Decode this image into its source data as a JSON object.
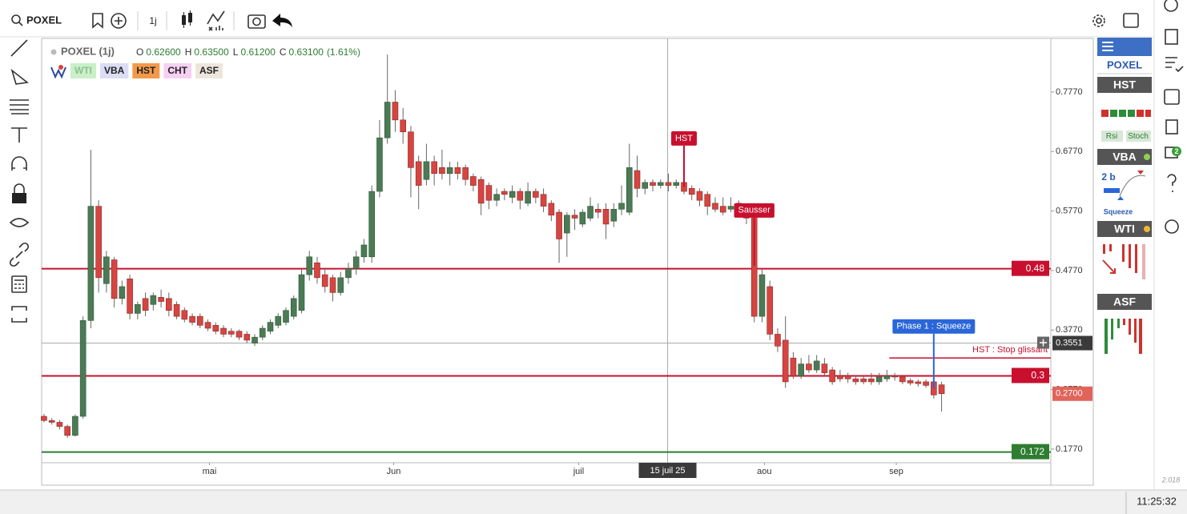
{
  "toolbar": {
    "symbol": "POXEL",
    "interval": "1j"
  },
  "legend": {
    "title": "POXEL (1j)",
    "ohlc": [
      {
        "key": "O",
        "value": "0.62600"
      },
      {
        "key": "H",
        "value": "0.63500"
      },
      {
        "key": "L",
        "value": "0.61200"
      },
      {
        "key": "C",
        "value": "0.63100"
      }
    ],
    "change": "(1.61%)",
    "indicators": [
      {
        "name": "WTI",
        "color": "#c9f0c9",
        "text_color": "#8fbf8f"
      },
      {
        "name": "VBA",
        "color": "#dcdcf5",
        "text_color": "#222"
      },
      {
        "name": "HST",
        "color": "#f39a4a",
        "text_color": "#222"
      },
      {
        "name": "CHT",
        "color": "#f6d0f2",
        "text_color": "#222"
      },
      {
        "name": "ASF",
        "color": "#eee6dc",
        "text_color": "#222"
      }
    ]
  },
  "chart_data": {
    "type": "candlestick",
    "up_color": "#4b7a55",
    "down_color": "#d64541",
    "candles": [
      [
        0.232,
        0.236,
        0.222,
        0.225
      ],
      [
        0.225,
        0.229,
        0.218,
        0.222
      ],
      [
        0.222,
        0.226,
        0.21,
        0.215
      ],
      [
        0.215,
        0.218,
        0.196,
        0.2
      ],
      [
        0.2,
        0.235,
        0.198,
        0.232
      ],
      [
        0.232,
        0.4,
        0.228,
        0.393
      ],
      [
        0.393,
        0.68,
        0.38,
        0.585
      ],
      [
        0.585,
        0.595,
        0.44,
        0.465
      ],
      [
        0.455,
        0.51,
        0.44,
        0.5
      ],
      [
        0.495,
        0.5,
        0.415,
        0.43
      ],
      [
        0.43,
        0.46,
        0.42,
        0.45
      ],
      [
        0.463,
        0.47,
        0.395,
        0.405
      ],
      [
        0.405,
        0.425,
        0.395,
        0.42
      ],
      [
        0.43,
        0.44,
        0.4,
        0.41
      ],
      [
        0.42,
        0.44,
        0.41,
        0.435
      ],
      [
        0.432,
        0.445,
        0.415,
        0.425
      ],
      [
        0.43,
        0.44,
        0.4,
        0.41
      ],
      [
        0.42,
        0.425,
        0.395,
        0.4
      ],
      [
        0.41,
        0.415,
        0.39,
        0.395
      ],
      [
        0.4,
        0.405,
        0.385,
        0.39
      ],
      [
        0.4,
        0.405,
        0.38,
        0.385
      ],
      [
        0.39,
        0.395,
        0.375,
        0.38
      ],
      [
        0.385,
        0.39,
        0.37,
        0.375
      ],
      [
        0.38,
        0.385,
        0.365,
        0.37
      ],
      [
        0.375,
        0.38,
        0.365,
        0.37
      ],
      [
        0.375,
        0.378,
        0.36,
        0.365
      ],
      [
        0.37,
        0.375,
        0.355,
        0.36
      ],
      [
        0.355,
        0.37,
        0.35,
        0.365
      ],
      [
        0.365,
        0.385,
        0.36,
        0.38
      ],
      [
        0.375,
        0.395,
        0.37,
        0.39
      ],
      [
        0.385,
        0.405,
        0.38,
        0.4
      ],
      [
        0.39,
        0.415,
        0.385,
        0.41
      ],
      [
        0.4,
        0.435,
        0.395,
        0.43
      ],
      [
        0.41,
        0.48,
        0.405,
        0.47
      ],
      [
        0.47,
        0.51,
        0.46,
        0.5
      ],
      [
        0.49,
        0.5,
        0.455,
        0.465
      ],
      [
        0.47,
        0.48,
        0.44,
        0.45
      ],
      [
        0.465,
        0.47,
        0.425,
        0.44
      ],
      [
        0.44,
        0.475,
        0.435,
        0.465
      ],
      [
        0.465,
        0.49,
        0.455,
        0.48
      ],
      [
        0.48,
        0.51,
        0.47,
        0.5
      ],
      [
        0.5,
        0.53,
        0.49,
        0.52
      ],
      [
        0.5,
        0.62,
        0.49,
        0.61
      ],
      [
        0.61,
        0.73,
        0.6,
        0.7
      ],
      [
        0.7,
        0.84,
        0.69,
        0.76
      ],
      [
        0.76,
        0.78,
        0.71,
        0.73
      ],
      [
        0.73,
        0.75,
        0.69,
        0.71
      ],
      [
        0.71,
        0.72,
        0.6,
        0.65
      ],
      [
        0.66,
        0.67,
        0.58,
        0.62
      ],
      [
        0.63,
        0.69,
        0.62,
        0.66
      ],
      [
        0.66,
        0.67,
        0.62,
        0.64
      ],
      [
        0.65,
        0.68,
        0.63,
        0.64
      ],
      [
        0.64,
        0.66,
        0.62,
        0.65
      ],
      [
        0.65,
        0.66,
        0.63,
        0.64
      ],
      [
        0.65,
        0.655,
        0.62,
        0.63
      ],
      [
        0.635,
        0.64,
        0.61,
        0.62
      ],
      [
        0.63,
        0.635,
        0.57,
        0.59
      ],
      [
        0.62,
        0.625,
        0.58,
        0.595
      ],
      [
        0.595,
        0.615,
        0.585,
        0.605
      ],
      [
        0.61,
        0.615,
        0.595,
        0.605
      ],
      [
        0.6,
        0.62,
        0.59,
        0.61
      ],
      [
        0.61,
        0.615,
        0.58,
        0.595
      ],
      [
        0.59,
        0.625,
        0.585,
        0.61
      ],
      [
        0.61,
        0.615,
        0.59,
        0.6
      ],
      [
        0.605,
        0.615,
        0.575,
        0.585
      ],
      [
        0.59,
        0.595,
        0.56,
        0.57
      ],
      [
        0.575,
        0.58,
        0.49,
        0.53
      ],
      [
        0.54,
        0.575,
        0.5,
        0.57
      ],
      [
        0.57,
        0.58,
        0.545,
        0.565
      ],
      [
        0.555,
        0.58,
        0.55,
        0.575
      ],
      [
        0.565,
        0.6,
        0.56,
        0.585
      ],
      [
        0.58,
        0.59,
        0.565,
        0.575
      ],
      [
        0.58,
        0.59,
        0.53,
        0.555
      ],
      [
        0.56,
        0.59,
        0.55,
        0.58
      ],
      [
        0.58,
        0.62,
        0.57,
        0.59
      ],
      [
        0.575,
        0.69,
        0.57,
        0.65
      ],
      [
        0.645,
        0.67,
        0.6,
        0.615
      ],
      [
        0.615,
        0.63,
        0.605,
        0.625
      ],
      [
        0.625,
        0.63,
        0.61,
        0.62
      ],
      [
        0.62,
        0.63,
        0.615,
        0.625
      ],
      [
        0.625,
        0.64,
        0.61,
        0.62
      ],
      [
        0.62,
        0.63,
        0.615,
        0.625
      ],
      [
        0.625,
        0.635,
        0.605,
        0.61
      ],
      [
        0.615,
        0.62,
        0.595,
        0.605
      ],
      [
        0.61,
        0.615,
        0.585,
        0.595
      ],
      [
        0.605,
        0.61,
        0.57,
        0.585
      ],
      [
        0.59,
        0.6,
        0.575,
        0.58
      ],
      [
        0.585,
        0.6,
        0.57,
        0.575
      ],
      [
        0.58,
        0.6,
        0.575,
        0.585
      ],
      [
        0.59,
        0.595,
        0.575,
        0.585
      ],
      [
        0.575,
        0.59,
        0.555,
        0.565
      ],
      [
        0.57,
        0.58,
        0.39,
        0.4
      ],
      [
        0.4,
        0.48,
        0.39,
        0.47
      ],
      [
        0.45,
        0.46,
        0.36,
        0.37
      ],
      [
        0.37,
        0.38,
        0.34,
        0.35
      ],
      [
        0.36,
        0.4,
        0.28,
        0.29
      ],
      [
        0.33,
        0.34,
        0.295,
        0.3
      ],
      [
        0.3,
        0.33,
        0.295,
        0.32
      ],
      [
        0.32,
        0.335,
        0.305,
        0.31
      ],
      [
        0.31,
        0.335,
        0.305,
        0.325
      ],
      [
        0.32,
        0.33,
        0.3,
        0.305
      ],
      [
        0.31,
        0.315,
        0.285,
        0.29
      ],
      [
        0.3,
        0.31,
        0.29,
        0.295
      ],
      [
        0.3,
        0.305,
        0.288,
        0.295
      ],
      [
        0.295,
        0.3,
        0.285,
        0.29
      ],
      [
        0.295,
        0.3,
        0.286,
        0.29
      ],
      [
        0.295,
        0.305,
        0.285,
        0.29
      ],
      [
        0.29,
        0.305,
        0.285,
        0.298
      ],
      [
        0.295,
        0.31,
        0.29,
        0.3
      ],
      [
        0.3,
        0.305,
        0.292,
        0.298
      ],
      [
        0.298,
        0.302,
        0.286,
        0.29
      ],
      [
        0.292,
        0.296,
        0.284,
        0.288
      ],
      [
        0.29,
        0.294,
        0.282,
        0.287
      ],
      [
        0.29,
        0.294,
        0.28,
        0.284
      ],
      [
        0.29,
        0.3,
        0.262,
        0.268
      ],
      [
        0.285,
        0.29,
        0.24,
        0.27
      ]
    ],
    "ylim": [
      0.154,
      0.867
    ],
    "yticks": [
      {
        "value": 0.177,
        "label": "0.1770"
      },
      {
        "value": 0.277,
        "label": "0.2770"
      },
      {
        "value": 0.377,
        "label": "0.3770"
      },
      {
        "value": 0.477,
        "label": "0.4770"
      },
      {
        "value": 0.577,
        "label": "0.5770"
      },
      {
        "value": 0.677,
        "label": "0.6770"
      },
      {
        "value": 0.777,
        "label": "0.7770"
      }
    ],
    "xlim": [
      -0.3,
      129
    ],
    "xticks": [
      {
        "value": 21.2,
        "label": "mai"
      },
      {
        "value": 44.8,
        "label": "Jun"
      },
      {
        "value": 68.5,
        "label": "juil"
      },
      {
        "value": 92.3,
        "label": "aou"
      },
      {
        "value": 109.2,
        "label": "sep"
      }
    ],
    "grid": false,
    "levels": [
      {
        "value": 0.48,
        "label": "0.48",
        "color": "#c8102e"
      },
      {
        "value": 0.3,
        "label": "0.3",
        "color": "#c8102e"
      },
      {
        "value": 0.172,
        "label": "0.172",
        "color": "#2e7d32"
      }
    ],
    "stop": {
      "value": 0.33,
      "x": 108.3,
      "label": "HST : Stop glissant",
      "color": "#c8102e"
    },
    "last_price": {
      "value": 0.27,
      "label": "0.2700",
      "color": "#e0645a"
    },
    "crosshair": {
      "x": 79.9,
      "x_label": "15 juil 25",
      "y": 0.3551,
      "y_label": "0.3551"
    },
    "annotations": [
      {
        "label": "HST",
        "x": 82,
        "y": 0.699,
        "color": "#c8102e"
      },
      {
        "label": "Sausser",
        "x": 91,
        "y": 0.578,
        "color": "#c8102e"
      },
      {
        "label": "Phase 1 : Squeeze",
        "x": 114,
        "y": 0.383,
        "color": "#2a66d9"
      }
    ]
  },
  "sidebar": {
    "symbol": "POXEL",
    "hst": "HST",
    "rsi": "Rsi",
    "stoch": "Stoch",
    "vba": "VBA",
    "vba_value": "2 b",
    "vba_state": "Squeeze",
    "wti": "WTI",
    "asf": "ASF"
  },
  "right_bar": {
    "badge": "2"
  },
  "status": {
    "version": "2.018",
    "time": "11:25:32"
  }
}
